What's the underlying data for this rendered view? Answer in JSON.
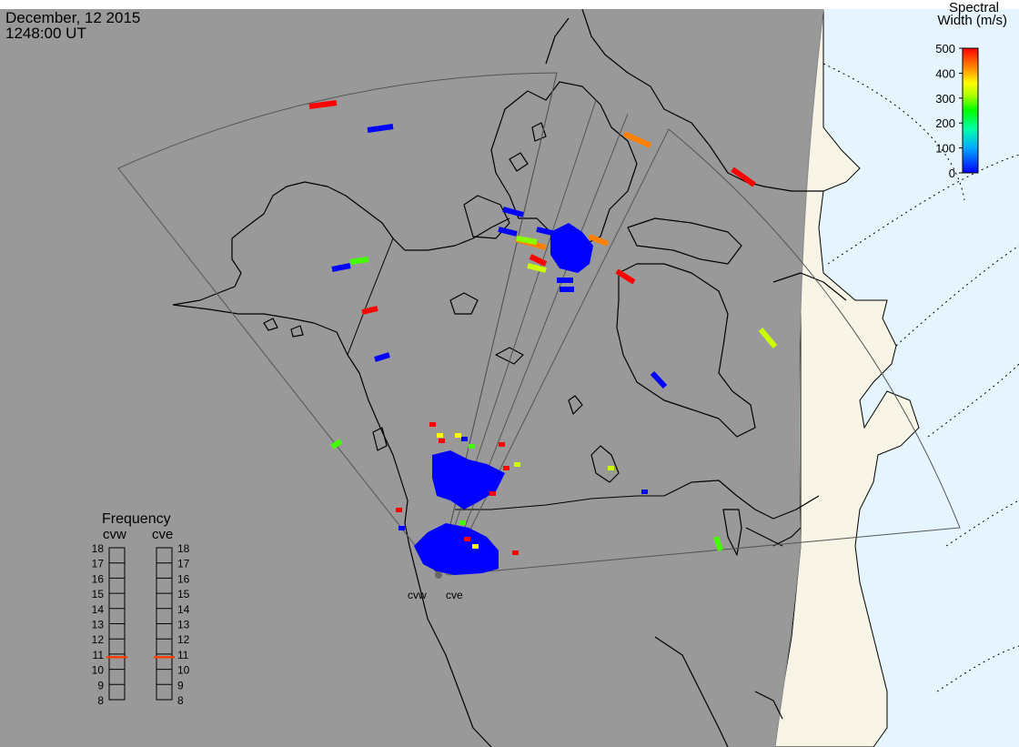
{
  "header": {
    "date": "December, 12 2015",
    "time": "1248:00 UT"
  },
  "colorbar": {
    "title_line1": "Spectral",
    "title_line2": "Width (m/s)",
    "ticks": [
      0,
      100,
      200,
      300,
      400,
      500
    ],
    "vmin": 0,
    "vmax": 500,
    "colors": [
      "#0000ff",
      "#00ffff",
      "#00ff00",
      "#ffff00",
      "#ff8000",
      "#ff0000"
    ]
  },
  "frequency": {
    "title": "Frequency",
    "columns": [
      {
        "name": "cvw",
        "value": 10.8
      },
      {
        "name": "cve",
        "value": 10.8
      }
    ],
    "ticks": [
      8,
      9,
      10,
      11,
      12,
      13,
      14,
      15,
      16,
      17,
      18
    ],
    "min": 8,
    "max": 18,
    "marker_color": "#ff4000"
  },
  "radars": [
    {
      "name": "cvw"
    },
    {
      "name": "cve"
    }
  ],
  "colors": {
    "night": "#999999",
    "land_day": "#f8f5e6",
    "ocean_day": "#e6f5fd"
  },
  "echoes": [
    {
      "w": 480,
      "c": "#ff0000"
    },
    {
      "w": 60,
      "c": "#0000ff"
    },
    {
      "w": 330,
      "c": "#ff8000"
    },
    {
      "w": 490,
      "c": "#ff0000"
    },
    {
      "w": 50,
      "c": "#0000ff"
    },
    {
      "w": 330,
      "c": "#ff8000"
    },
    {
      "w": 60,
      "c": "#0000ff"
    },
    {
      "w": 240,
      "c": "#88ff00"
    },
    {
      "w": 40,
      "c": "#0000ff"
    },
    {
      "w": 330,
      "c": "#ff8000"
    },
    {
      "w": 470,
      "c": "#ff0000"
    },
    {
      "w": 250,
      "c": "#ccff00"
    },
    {
      "w": 470,
      "c": "#ff0000"
    },
    {
      "w": 60,
      "c": "#0000ff"
    },
    {
      "w": 210,
      "c": "#44ff00"
    },
    {
      "w": 480,
      "c": "#ff0000"
    },
    {
      "w": 60,
      "c": "#0000ff"
    },
    {
      "w": 210,
      "c": "#44ff00"
    },
    {
      "w": 240,
      "c": "#ccff00"
    },
    {
      "w": 60,
      "c": "#0000ff"
    },
    {
      "w": 210,
      "c": "#44ff00"
    }
  ]
}
